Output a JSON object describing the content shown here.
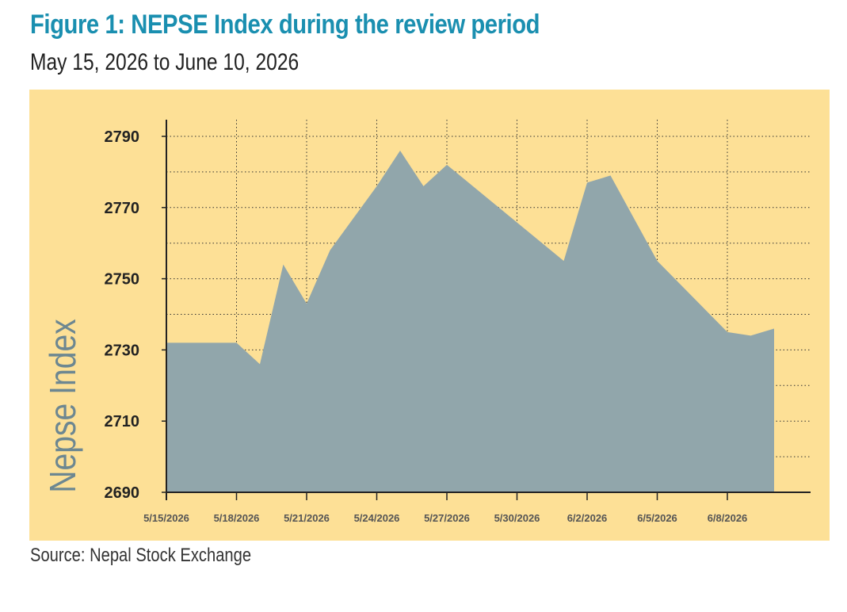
{
  "header": {
    "title": "Figure 1: NEPSE Index during the review period",
    "subtitle": "May 15, 2026 to June 10, 2026"
  },
  "footer": {
    "source": "Source: Nepal Stock Exchange"
  },
  "chart_data": {
    "type": "area",
    "ylabel": "Nepse Index",
    "ylim": [
      2690,
      2790
    ],
    "yticks": [
      2690,
      2710,
      2730,
      2750,
      2770,
      2790
    ],
    "x_tick_labels": [
      "5/15/2026",
      "5/18/2026",
      "5/21/2026",
      "5/24/2026",
      "5/27/2026",
      "5/30/2026",
      "6/2/2026",
      "6/5/2026",
      "6/8/2026"
    ],
    "x_tick_dates": [
      "2026-05-15",
      "2026-05-18",
      "2026-05-21",
      "2026-05-24",
      "2026-05-27",
      "2026-05-30",
      "2026-06-02",
      "2026-06-05",
      "2026-06-08"
    ],
    "x_range": [
      "2026-05-15",
      "2026-06-12"
    ],
    "grid": true,
    "colors": {
      "area": "#91a6ab",
      "panel": "#fde096",
      "title": "#1a8fb0",
      "ylabel": "#6d8791"
    },
    "series": [
      {
        "x": [
          "2026-05-15",
          "2026-05-18",
          "2026-05-19",
          "2026-05-20",
          "2026-05-21",
          "2026-05-22",
          "2026-05-23",
          "2026-05-24",
          "2026-05-25",
          "2026-05-26",
          "2026-05-27",
          "2026-06-01",
          "2026-06-02",
          "2026-06-03",
          "2026-06-05",
          "2026-06-08",
          "2026-06-09",
          "2026-06-10"
        ],
        "values": [
          2732,
          2732,
          2726,
          2754,
          2743,
          2758,
          2767,
          2776,
          2786,
          2776,
          2782,
          2755,
          2777,
          2779,
          2755,
          2735,
          2734,
          2736
        ]
      }
    ]
  }
}
